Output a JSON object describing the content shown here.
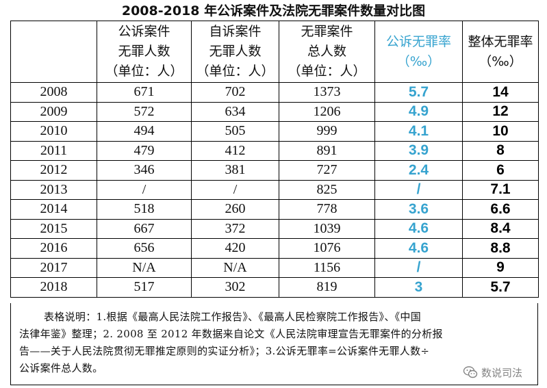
{
  "title": "2008-2018 年公诉案件及法院无罪案件数量对比图",
  "header": {
    "year": "",
    "c1": [
      "公诉案件",
      "无罪人数",
      "（单位：人）"
    ],
    "c2": [
      "自诉案件",
      "无罪人数",
      "（单位：人）"
    ],
    "c3": [
      "无罪案件",
      "总人数",
      "（单位：人）"
    ],
    "c4": [
      "公诉无罪率",
      "（‰）"
    ],
    "c5": [
      "整体无罪率",
      "（‰）"
    ]
  },
  "rows": [
    [
      "2008",
      "671",
      "702",
      "1373",
      "5.7",
      "14"
    ],
    [
      "2009",
      "572",
      "634",
      "1206",
      "4.9",
      "12"
    ],
    [
      "2010",
      "494",
      "505",
      "999",
      "4.1",
      "10"
    ],
    [
      "2011",
      "479",
      "412",
      "891",
      "3.9",
      "8"
    ],
    [
      "2012",
      "346",
      "381",
      "727",
      "2.4",
      "6"
    ],
    [
      "2013",
      "/",
      "/",
      "825",
      "/",
      "7.1"
    ],
    [
      "2014",
      "518",
      "260",
      "778",
      "3.6",
      "6.6"
    ],
    [
      "2015",
      "667",
      "372",
      "1039",
      "4.6",
      "8.4"
    ],
    [
      "2016",
      "656",
      "420",
      "1076",
      "4.6",
      "8.8"
    ],
    [
      "2017",
      "N/A",
      "N/A",
      "1156",
      "/",
      "9"
    ],
    [
      "2018",
      "517",
      "302",
      "819",
      "3",
      "5.7"
    ]
  ],
  "note_lines": [
    "表格说明：1.根据《最高人民法院工作报告》、《最高人民检察院工作报告》、《中国",
    "法律年鉴》整理；2. 2008 至 2012 年数据来自论文《人民法院审理宣告无罪案件的分析报",
    "告——关于人民法院贯彻无罪推定原则的实证分析》；3.公诉无罪率=公诉案件无罪人数÷",
    "公诉案件总人数。"
  ],
  "watermark": "数说司法",
  "colors": {
    "accent": "#36a3cf",
    "border": "#000000",
    "text": "#111111"
  },
  "icons": {
    "watermark": "wechat-bubble-icon"
  }
}
